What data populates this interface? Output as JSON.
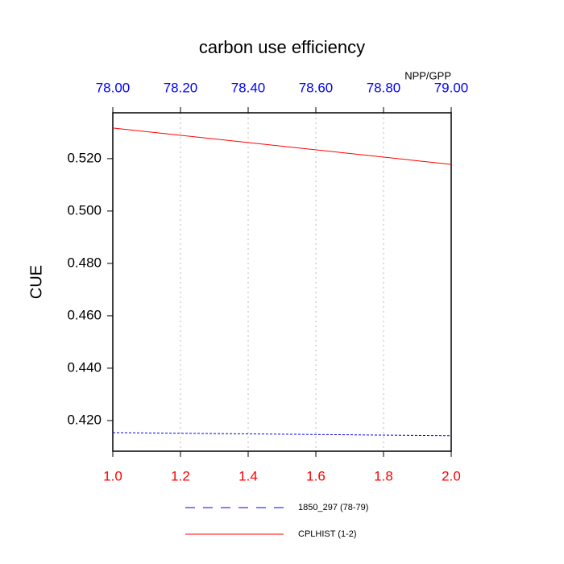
{
  "chart_data": {
    "type": "line",
    "title": "carbon use efficiency",
    "subtitle": "NPP/GPP",
    "ylabel": "CUE",
    "ylim": [
      0.4083,
      0.5375
    ],
    "yticks": [
      {
        "value": 0.42,
        "label": "0.420"
      },
      {
        "value": 0.44,
        "label": "0.440"
      },
      {
        "value": 0.46,
        "label": "0.460"
      },
      {
        "value": 0.48,
        "label": "0.480"
      },
      {
        "value": 0.5,
        "label": "0.500"
      },
      {
        "value": 0.52,
        "label": "0.520"
      }
    ],
    "xlim": [
      1,
      2
    ],
    "xticks": [
      {
        "value": 1,
        "label": "1.0"
      },
      {
        "value": 1.2,
        "label": "1.2"
      },
      {
        "value": 1.4,
        "label": "1.4"
      },
      {
        "value": 1.6,
        "label": "1.6"
      },
      {
        "value": 1.8,
        "label": "1.8"
      },
      {
        "value": 2,
        "label": "2.0"
      }
    ],
    "xtick_color": "#ff0000",
    "x2lim": [
      78,
      79
    ],
    "x2ticks": [
      {
        "value": 78,
        "label": "78.00"
      },
      {
        "value": 78.2,
        "label": "78.20"
      },
      {
        "value": 78.4,
        "label": "78.40"
      },
      {
        "value": 78.6,
        "label": "78.60"
      },
      {
        "value": 78.8,
        "label": "78.80"
      },
      {
        "value": 79,
        "label": "79.00"
      }
    ],
    "x2tick_color": "#0000ff",
    "grid": true,
    "series": [
      {
        "name": "1850_297 (78-79)",
        "color": "#0000ff",
        "dashed": true,
        "axis": "x2",
        "x": [
          78,
          79
        ],
        "values": [
          0.4154,
          0.4142
        ]
      },
      {
        "name": "CPLHIST (1-2)",
        "color": "#ff0000",
        "dashed": false,
        "axis": "x",
        "x": [
          1,
          2
        ],
        "values": [
          0.5317,
          0.5178
        ]
      }
    ]
  }
}
